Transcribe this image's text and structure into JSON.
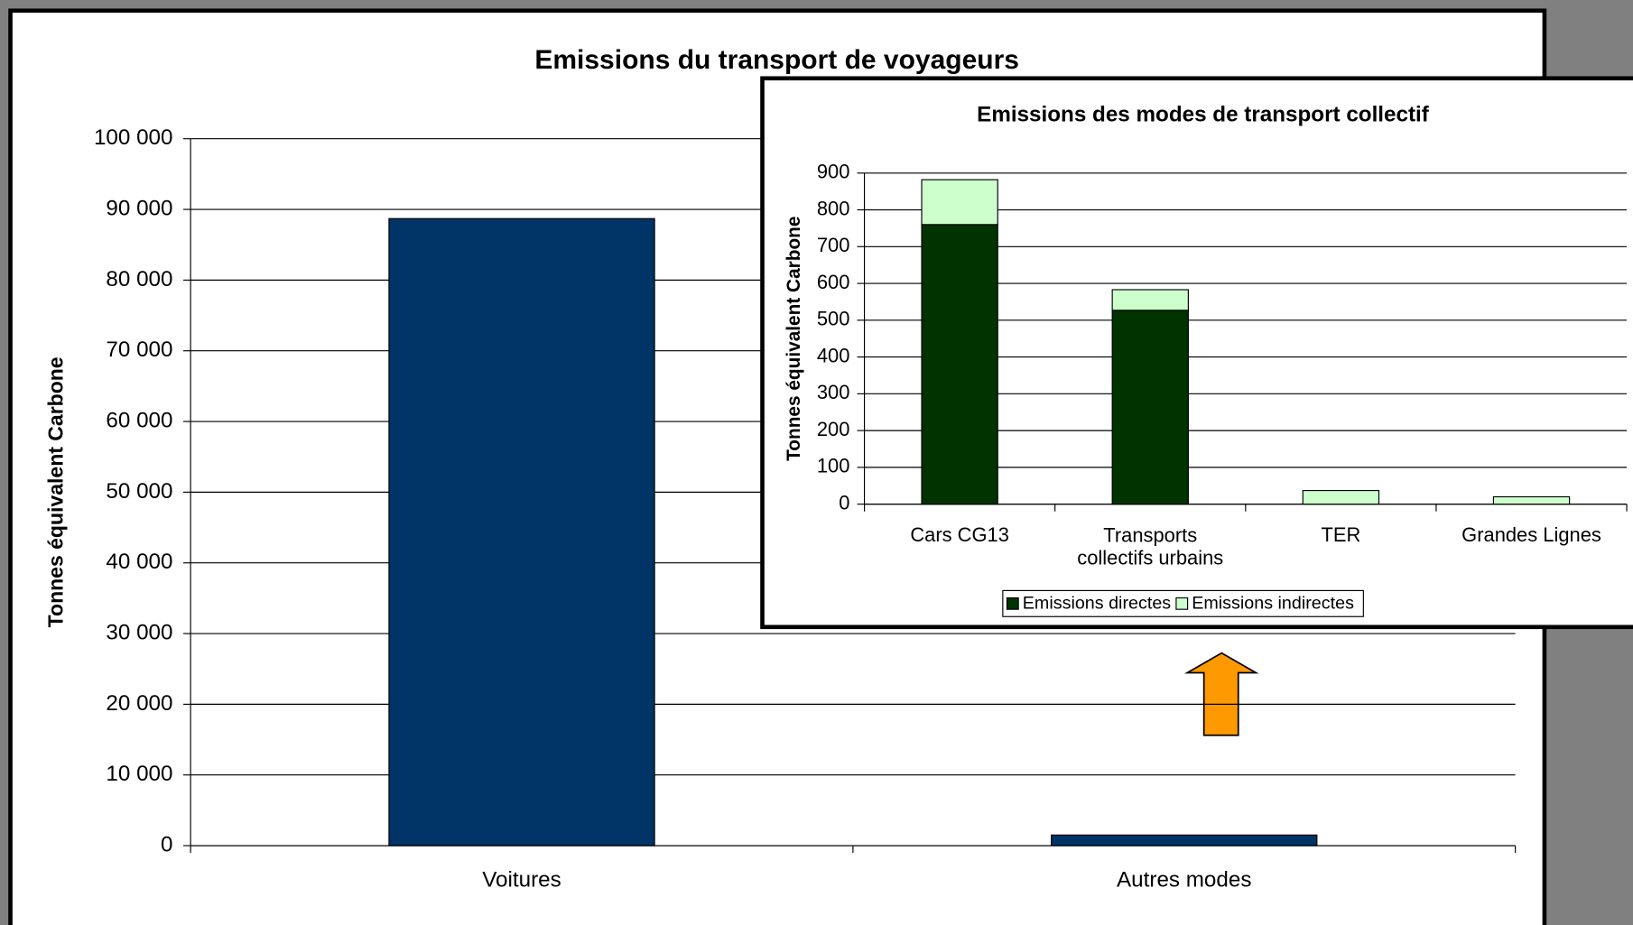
{
  "chart_data": [
    {
      "type": "bar",
      "title": "Emissions du transport de voyageurs",
      "ylabel": "Tonnes équivalent Carbone",
      "categories": [
        "Voitures",
        "Autres modes"
      ],
      "values": [
        88700,
        1500
      ],
      "color": "#003366",
      "ylim": [
        0,
        100000
      ],
      "yticks": [
        {
          "value": 0,
          "label": "0"
        },
        {
          "value": 10000,
          "label": "10 000"
        },
        {
          "value": 20000,
          "label": "20 000"
        },
        {
          "value": 30000,
          "label": "30 000"
        },
        {
          "value": 40000,
          "label": "40 000"
        },
        {
          "value": 50000,
          "label": "50 000"
        },
        {
          "value": 60000,
          "label": "60 000"
        },
        {
          "value": 70000,
          "label": "70 000"
        },
        {
          "value": 80000,
          "label": "80 000"
        },
        {
          "value": 90000,
          "label": "90 000"
        },
        {
          "value": 100000,
          "label": "100 000"
        }
      ],
      "grid": true
    },
    {
      "type": "stacked_bar",
      "title": "Emissions des modes de transport collectif",
      "ylabel": "Tonnes équivalent Carbone",
      "categories": [
        "Cars CG13",
        "Transports collectifs urbains",
        "TER",
        "Grandes Lignes"
      ],
      "series": [
        {
          "name": "Emissions directes",
          "color": "#003300",
          "values": [
            760,
            527,
            0,
            0
          ]
        },
        {
          "name": "Emissions indirectes",
          "color": "#ccffcc",
          "values": [
            122,
            56,
            37,
            20
          ]
        }
      ],
      "ylim": [
        0,
        900
      ],
      "yticks": [
        0,
        100,
        200,
        300,
        400,
        500,
        600,
        700,
        800,
        900
      ],
      "grid": true,
      "legend": "bottom"
    }
  ]
}
